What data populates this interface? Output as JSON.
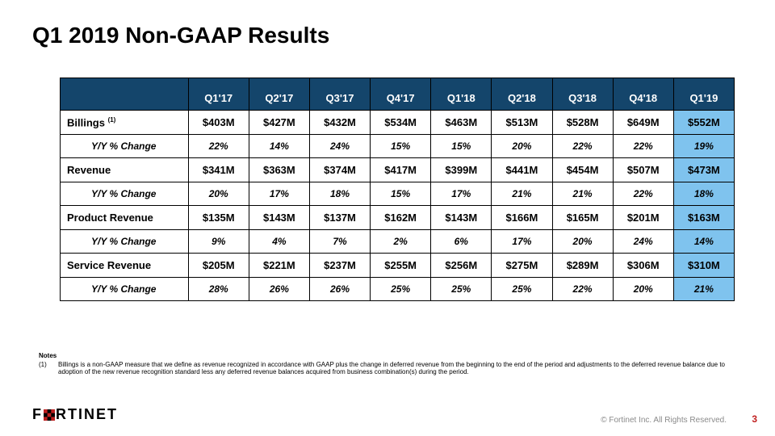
{
  "title": "Q1 2019 Non-GAAP Results",
  "table": {
    "type": "table",
    "header_bg": "#14456b",
    "header_fg": "#ffffff",
    "highlight_bg": "#7fc3ee",
    "border_color": "#000000",
    "columns": [
      "",
      "Q1'17",
      "Q2'17",
      "Q3'17",
      "Q4'17",
      "Q1'18",
      "Q2'18",
      "Q3'18",
      "Q4'18",
      "Q1'19"
    ],
    "rows": [
      {
        "label_html": "Billings <sup>(1)</sup>",
        "style": "metric",
        "values": [
          "$403M",
          "$427M",
          "$432M",
          "$534M",
          "$463M",
          "$513M",
          "$528M",
          "$649M",
          "$552M"
        ]
      },
      {
        "label": "Y/Y % Change",
        "style": "change",
        "values": [
          "22%",
          "14%",
          "24%",
          "15%",
          "15%",
          "20%",
          "22%",
          "22%",
          "19%"
        ]
      },
      {
        "label": "Revenue",
        "style": "metric",
        "values": [
          "$341M",
          "$363M",
          "$374M",
          "$417M",
          "$399M",
          "$441M",
          "$454M",
          "$507M",
          "$473M"
        ]
      },
      {
        "label": "Y/Y % Change",
        "style": "change",
        "values": [
          "20%",
          "17%",
          "18%",
          "15%",
          "17%",
          "21%",
          "21%",
          "22%",
          "18%"
        ]
      },
      {
        "label": "Product Revenue",
        "style": "metric",
        "values": [
          "$135M",
          "$143M",
          "$137M",
          "$162M",
          "$143M",
          "$166M",
          "$165M",
          "$201M",
          "$163M"
        ]
      },
      {
        "label": "Y/Y % Change",
        "style": "change",
        "values": [
          "9%",
          "4%",
          "7%",
          "2%",
          "6%",
          "17%",
          "20%",
          "24%",
          "14%"
        ]
      },
      {
        "label": "Service Revenue",
        "style": "metric",
        "values": [
          "$205M",
          "$221M",
          "$237M",
          "$255M",
          "$256M",
          "$275M",
          "$289M",
          "$306M",
          "$310M"
        ]
      },
      {
        "label": "Y/Y % Change",
        "style": "change",
        "values": [
          "28%",
          "26%",
          "26%",
          "25%",
          "25%",
          "25%",
          "22%",
          "20%",
          "21%"
        ]
      }
    ],
    "highlight_col_index": 8
  },
  "notes": {
    "heading": "Notes",
    "items": [
      {
        "num": "(1)",
        "text": "Billings is a non-GAAP measure that we define as revenue recognized in accordance with GAAP plus the change in deferred revenue from the beginning to the end of the period and adjustments to the deferred revenue balance due to adoption of the new revenue recognition standard less any deferred revenue balances acquired from business combination(s) during the period."
      }
    ]
  },
  "footer": {
    "logo_text_left": "F",
    "logo_text_right": "RTINET",
    "copyright": "© Fortinet Inc. All Rights Reserved.",
    "page": "3"
  },
  "colors": {
    "title": "#000000",
    "copyright": "#8a8a8a",
    "page_num": "#c02020",
    "logo_accent": "#c02020"
  },
  "fonts": {
    "title_size_pt": 21,
    "table_size_pt": 10,
    "notes_size_pt": 6
  }
}
